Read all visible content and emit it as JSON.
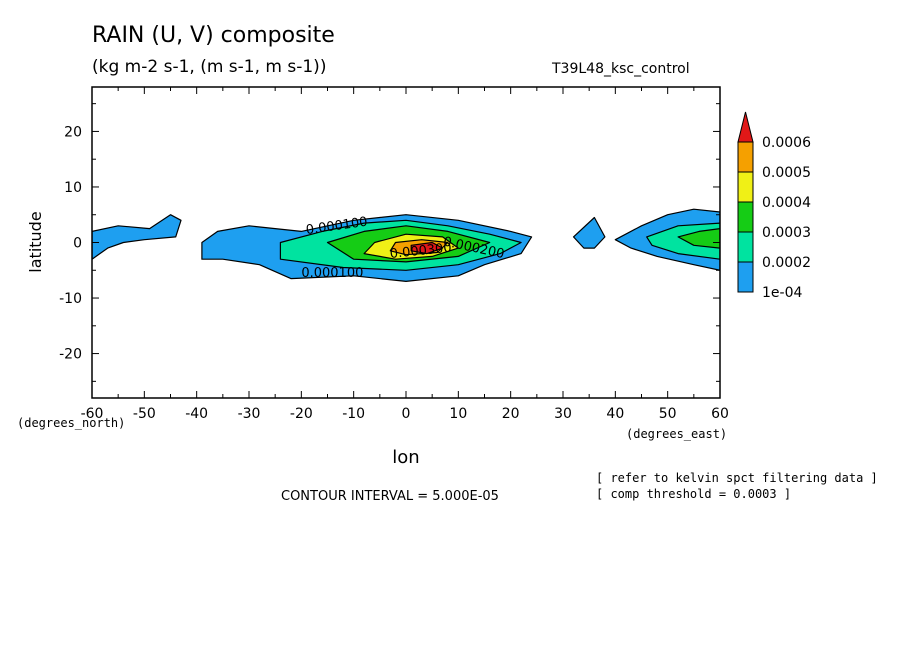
{
  "header": {
    "title": "RAIN (U, V) composite",
    "units": "(kg m-2 s-1, (m s-1, m s-1))",
    "dataset": "T39L48_ksc_control"
  },
  "footer": {
    "contour_interval": "CONTOUR INTERVAL = 5.000E-05",
    "note1": "[ refer to kelvin spct filtering data ]",
    "note2": "[ comp threshold = 0.0003 ]"
  },
  "chart_data": {
    "type": "heatmap",
    "subtype": "filled contour",
    "title": "RAIN (U, V) composite",
    "subtitle": "(kg m-2 s-1, (m s-1, m s-1))",
    "xlabel": "lon",
    "ylabel": "latitude",
    "x_unit_label": "(degrees_east)",
    "y_unit_label": "(degrees_north)",
    "xlim": [
      -60,
      60
    ],
    "ylim": [
      -28,
      28
    ],
    "x_ticks": [
      -60,
      -50,
      -40,
      -30,
      -20,
      -10,
      0,
      10,
      20,
      30,
      40,
      50,
      60
    ],
    "y_ticks": [
      -20,
      -10,
      0,
      10,
      20
    ],
    "x_tick_labels": [
      "-60",
      "-50",
      "-40",
      "-30",
      "-20",
      "-10",
      "0",
      "10",
      "20",
      "30",
      "40",
      "50",
      "60"
    ],
    "y_tick_labels": [
      "-20",
      "-10",
      "0",
      "10",
      "20"
    ],
    "colorbar": {
      "levels": [
        0.0001,
        0.0002,
        0.0003,
        0.0004,
        0.0005,
        0.0006
      ],
      "labels": [
        "1e-04",
        "0.0002",
        "0.0003",
        "0.0004",
        "0.0005",
        "0.0006"
      ],
      "colors": [
        "#1e9ff0",
        "#00e3a0",
        "#15cc15",
        "#f0f016",
        "#f5a000",
        "#e01818"
      ]
    },
    "contour_labels": [
      "0.000100",
      "0.000100",
      "0.000200",
      "0.000300"
    ],
    "regions": [
      {
        "level": 0,
        "points": [
          [
            -60,
            2
          ],
          [
            -55,
            3
          ],
          [
            -49,
            2.5
          ],
          [
            -45,
            5
          ],
          [
            -43,
            4
          ],
          [
            -44,
            1
          ],
          [
            -50,
            0.5
          ],
          [
            -54,
            0
          ],
          [
            -57,
            -1
          ],
          [
            -60,
            -3
          ]
        ]
      },
      {
        "level": 0,
        "points": [
          [
            -39,
            0
          ],
          [
            -36,
            2
          ],
          [
            -30,
            3
          ],
          [
            -25,
            2.5
          ],
          [
            -20,
            2
          ],
          [
            -10,
            4
          ],
          [
            0,
            5
          ],
          [
            10,
            4
          ],
          [
            20,
            2
          ],
          [
            24,
            1
          ],
          [
            22,
            -2
          ],
          [
            15,
            -4
          ],
          [
            10,
            -6
          ],
          [
            0,
            -7
          ],
          [
            -10,
            -6
          ],
          [
            -22,
            -6.5
          ],
          [
            -28,
            -4
          ],
          [
            -35,
            -3
          ],
          [
            -39,
            -3
          ]
        ]
      },
      {
        "level": 0,
        "points": [
          [
            32,
            1
          ],
          [
            36,
            4.5
          ],
          [
            38,
            1
          ],
          [
            36,
            -1
          ],
          [
            34,
            -1
          ]
        ]
      },
      {
        "level": 0,
        "points": [
          [
            40,
            0.5
          ],
          [
            45,
            3
          ],
          [
            50,
            5
          ],
          [
            55,
            6
          ],
          [
            60,
            5.5
          ],
          [
            60,
            -5
          ],
          [
            55,
            -4
          ],
          [
            48,
            -2.5
          ],
          [
            43,
            -1
          ]
        ]
      },
      {
        "level": 1,
        "points": [
          [
            -24,
            0
          ],
          [
            -16,
            2
          ],
          [
            -8,
            3.5
          ],
          [
            0,
            4
          ],
          [
            8,
            3
          ],
          [
            16,
            1.5
          ],
          [
            22,
            0
          ],
          [
            18,
            -2
          ],
          [
            10,
            -4
          ],
          [
            0,
            -5
          ],
          [
            -12,
            -4.5
          ],
          [
            -24,
            -3
          ]
        ]
      },
      {
        "level": 1,
        "points": [
          [
            46,
            1
          ],
          [
            52,
            3
          ],
          [
            60,
            3.5
          ],
          [
            60,
            -3
          ],
          [
            52,
            -2
          ],
          [
            47,
            -0.5
          ]
        ]
      },
      {
        "level": 2,
        "points": [
          [
            -15,
            0
          ],
          [
            -8,
            2
          ],
          [
            0,
            3
          ],
          [
            8,
            2
          ],
          [
            16,
            0
          ],
          [
            10,
            -2.5
          ],
          [
            0,
            -3.5
          ],
          [
            -10,
            -3
          ]
        ]
      },
      {
        "level": 2,
        "points": [
          [
            52,
            1
          ],
          [
            56,
            2
          ],
          [
            60,
            2.5
          ],
          [
            60,
            -1
          ],
          [
            55,
            -0.5
          ]
        ]
      },
      {
        "level": 3,
        "points": [
          [
            -6,
            0
          ],
          [
            0,
            1.5
          ],
          [
            7,
            1
          ],
          [
            10,
            -1
          ],
          [
            5,
            -2.5
          ],
          [
            -2,
            -3
          ],
          [
            -8,
            -2
          ]
        ]
      },
      {
        "level": 4,
        "points": [
          [
            -2,
            0
          ],
          [
            3,
            0.5
          ],
          [
            8,
            0
          ],
          [
            6,
            -1.8
          ],
          [
            0,
            -2.2
          ],
          [
            -3,
            -1.5
          ]
        ]
      },
      {
        "level": 5,
        "points": [
          [
            1,
            -0.5
          ],
          [
            5,
            0
          ],
          [
            7,
            -1
          ],
          [
            4,
            -2
          ],
          [
            1,
            -1.5
          ]
        ]
      }
    ]
  }
}
